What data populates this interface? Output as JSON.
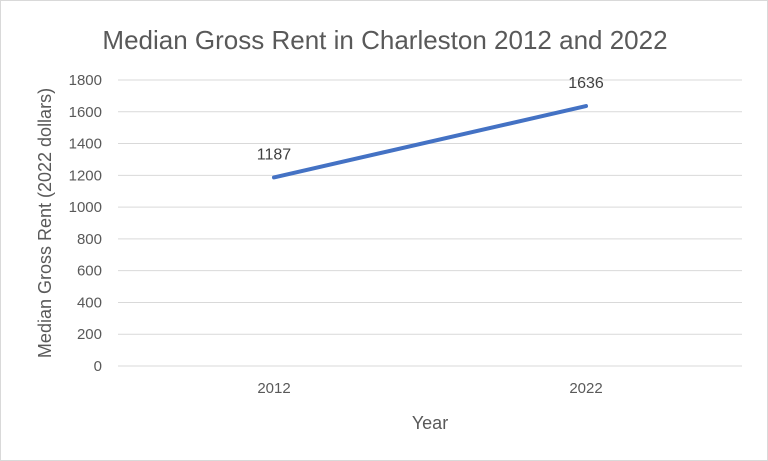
{
  "chart_data": {
    "type": "line",
    "title": "Median Gross Rent in Charleston 2012 and 2022",
    "xlabel": "Year",
    "ylabel": "Median Gross Rent (2022 dollars)",
    "categories": [
      "2012",
      "2022"
    ],
    "series": [
      {
        "values": [
          1187,
          1636
        ],
        "color": "#4472c4"
      }
    ],
    "data_labels": [
      "1187",
      "1636"
    ],
    "ylim": [
      0,
      1800
    ],
    "yticks": [
      0,
      200,
      400,
      600,
      800,
      1000,
      1200,
      1400,
      1600,
      1800
    ],
    "ytick_labels": [
      "0",
      "200",
      "400",
      "600",
      "800",
      "1000",
      "1200",
      "1400",
      "1600",
      "1800"
    ],
    "grid": true,
    "legend": "none",
    "gridline_color": "#d9d9d9"
  }
}
